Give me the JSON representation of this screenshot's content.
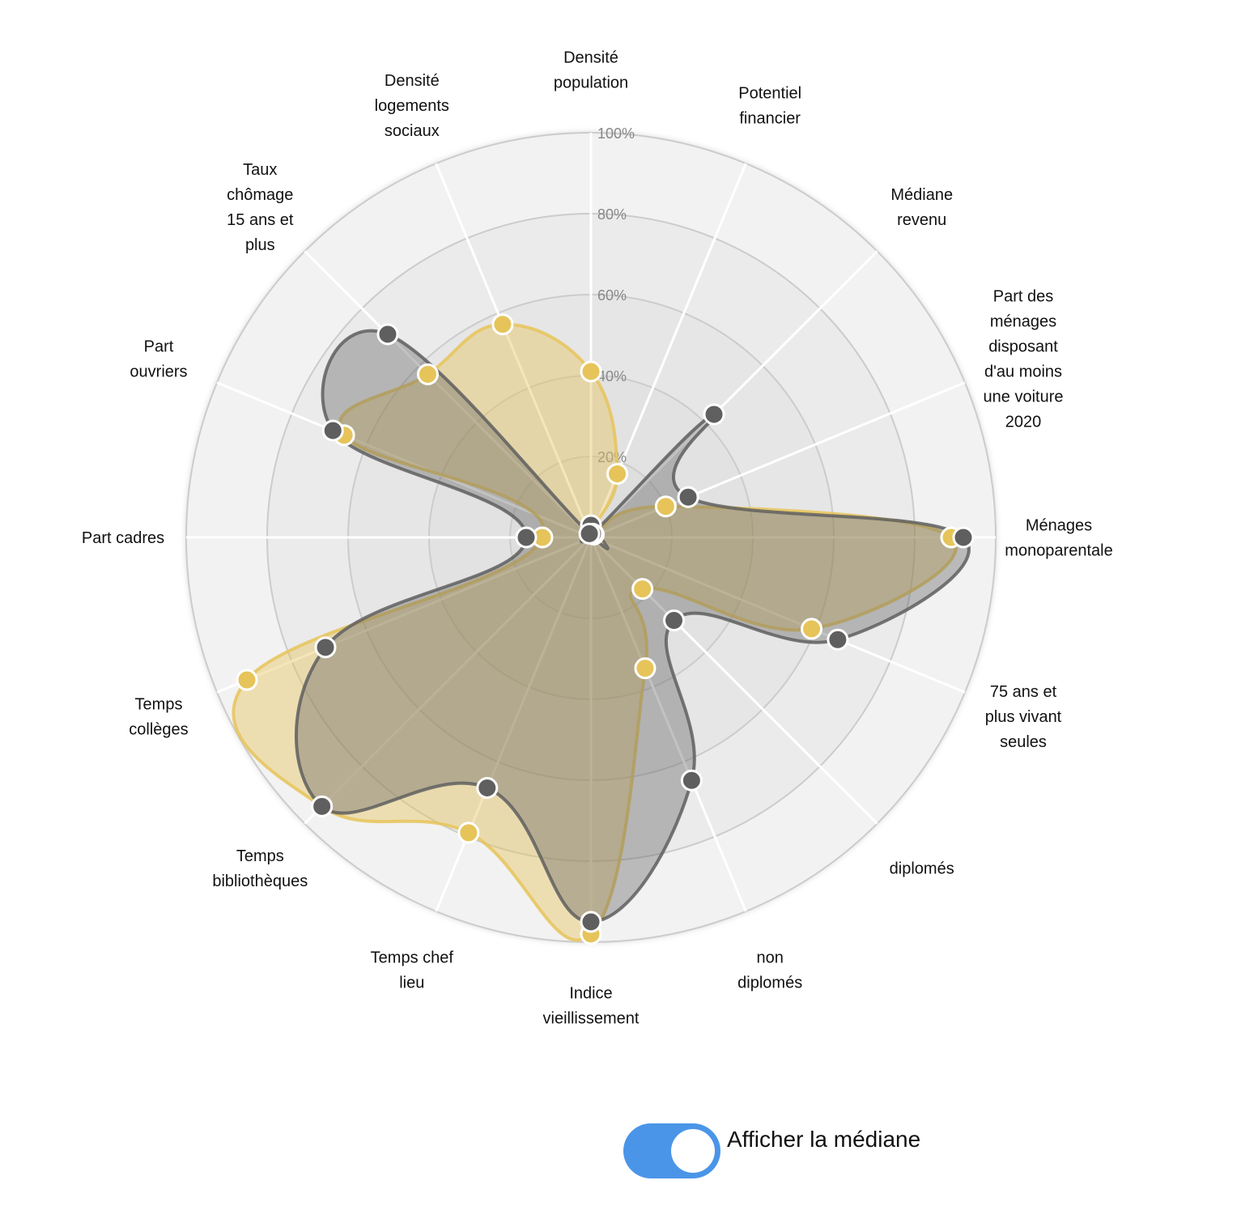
{
  "chart_data": {
    "type": "radar",
    "axes": [
      [
        "Densité",
        "population"
      ],
      [
        "Potentiel",
        "financier"
      ],
      [
        "Médiane",
        "revenu"
      ],
      [
        "Part des",
        "ménages",
        "disposant",
        "d'au moins",
        "une voiture",
        "2020"
      ],
      [
        "Ménages",
        "monoparentale"
      ],
      [
        "75 ans et",
        "plus vivant",
        "seules"
      ],
      [
        "diplomés"
      ],
      [
        "non",
        "diplomés"
      ],
      [
        "Indice",
        "vieillissement"
      ],
      [
        "Temps chef",
        "lieu"
      ],
      [
        "Temps",
        "bibliothèques"
      ],
      [
        "Temps",
        "collèges"
      ],
      [
        "Part cadres"
      ],
      [
        "Part",
        "ouvriers"
      ],
      [
        "Taux",
        "chômage",
        "15 ans et",
        "plus"
      ],
      [
        "Densité",
        "logements",
        "sociaux"
      ]
    ],
    "ticks": [
      "20%",
      "40%",
      "60%",
      "80%",
      "100%"
    ],
    "range": [
      0,
      100
    ],
    "series": [
      {
        "color": "#e6c45a",
        "values": [
          41,
          17,
          1,
          20,
          89,
          59,
          18,
          35,
          98,
          79,
          94,
          92,
          12,
          66,
          57,
          57
        ]
      },
      {
        "color": "#5f5f5f",
        "values": [
          3,
          1,
          43,
          26,
          92,
          66,
          29,
          65,
          95,
          67,
          94,
          71,
          16,
          69,
          71,
          1
        ]
      }
    ]
  },
  "toggle": {
    "label": "Afficher la médiane",
    "on": true,
    "color": "#4a95e8"
  }
}
